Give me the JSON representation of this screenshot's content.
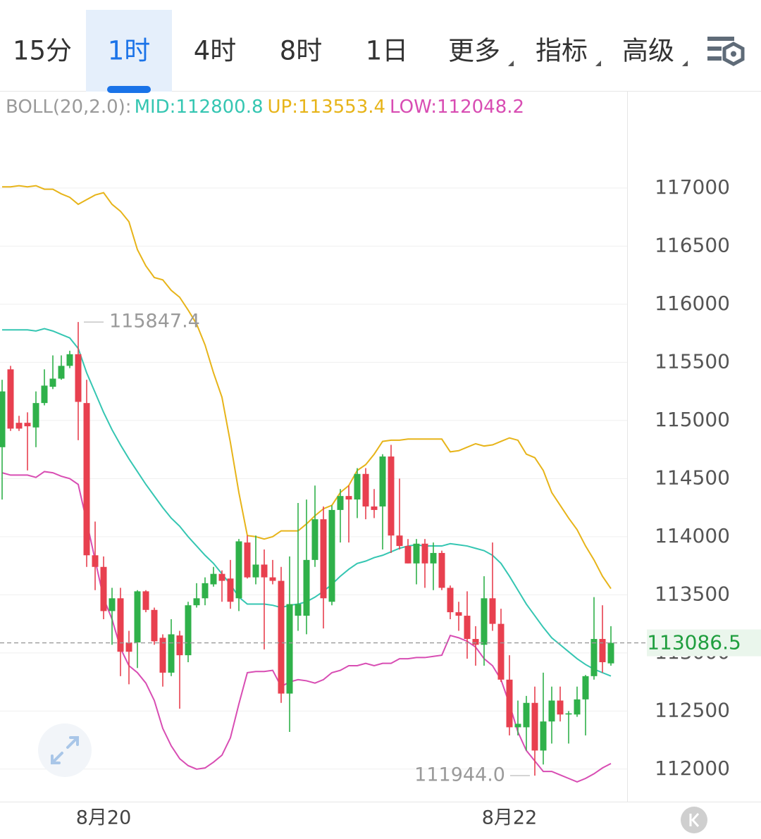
{
  "tabs": [
    {
      "label": "15分"
    },
    {
      "label": "1时",
      "selected": true
    },
    {
      "label": "4时"
    },
    {
      "label": "8时"
    },
    {
      "label": "1日"
    },
    {
      "label": "更多",
      "dropdown": true
    },
    {
      "label": "指标",
      "dropdown": true
    },
    {
      "label": "高级",
      "dropdown": true
    }
  ],
  "chart_data": {
    "type": "candlestick",
    "indicator": "BOLL(20,2.0):",
    "up_color": "#2fb14a",
    "down_color": "#e8404f",
    "categories": [
      null,
      null,
      null,
      null,
      null,
      null,
      null,
      null,
      null,
      null,
      null,
      null,
      "8月20",
      null,
      null,
      null,
      null,
      null,
      null,
      null,
      null,
      null,
      null,
      null,
      null,
      null,
      null,
      null,
      null,
      null,
      null,
      null,
      null,
      null,
      null,
      null,
      null,
      null,
      null,
      null,
      null,
      null,
      null,
      null,
      null,
      null,
      null,
      null,
      null,
      null,
      null,
      null,
      null,
      null,
      null,
      null,
      null,
      null,
      null,
      null,
      "8月22",
      null,
      null,
      null,
      null,
      null,
      null,
      null,
      null,
      null,
      null,
      null,
      null
    ],
    "open": [
      114770,
      115440,
      114980,
      114980,
      114940,
      115150,
      115290,
      115360,
      115470,
      115570,
      115150,
      113840,
      113740,
      113360,
      113470,
      113090,
      113090,
      113530,
      113370,
      113130,
      112830,
      113150,
      112980,
      113410,
      113470,
      113590,
      113680,
      113640,
      113470,
      113950,
      113650,
      113760,
      113650,
      113620,
      112650,
      113320,
      113320,
      113800,
      114150,
      113440,
      114230,
      114350,
      114320,
      114540,
      114260,
      114260,
      114690,
      114010,
      113920,
      113770,
      113940,
      113770,
      113860,
      113560,
      113350,
      113320,
      113120,
      113070,
      113470,
      113250,
      112770,
      112360,
      112360,
      112570,
      112160,
      112410,
      112590,
      112470,
      112470,
      112600,
      112800,
      113120,
      112910
    ],
    "high": [
      115350,
      115470,
      115040,
      115070,
      115250,
      115440,
      115560,
      115560,
      115600,
      115847.4,
      115350,
      114130,
      113830,
      113560,
      113560,
      113190,
      113540,
      113540,
      113390,
      113160,
      113290,
      113190,
      113440,
      113600,
      113650,
      113740,
      113710,
      113800,
      113980,
      114010,
      114010,
      113890,
      113800,
      113740,
      113830,
      114290,
      114320,
      114440,
      114260,
      114270,
      114410,
      114440,
      114590,
      114590,
      114410,
      114710,
      114790,
      114500,
      113980,
      113980,
      113980,
      113950,
      113880,
      113580,
      113440,
      113530,
      113230,
      113660,
      113950,
      113380,
      112980,
      112590,
      112630,
      112710,
      112830,
      112710,
      112710,
      112500,
      112710,
      112810,
      113480,
      113410,
      113230
    ],
    "low": [
      114320,
      114910,
      114910,
      114570,
      114770,
      115130,
      115270,
      115350,
      115450,
      114830,
      113740,
      113540,
      113290,
      113070,
      112800,
      112730,
      112870,
      113350,
      113070,
      112710,
      112800,
      112520,
      112920,
      113390,
      113410,
      113570,
      113440,
      113380,
      113360,
      113640,
      113590,
      113030,
      113590,
      112570,
      112320,
      113190,
      113160,
      113740,
      113210,
      113410,
      113950,
      113950,
      114160,
      114150,
      114160,
      113890,
      113860,
      113890,
      113770,
      113590,
      113560,
      113540,
      113540,
      113290,
      113190,
      112950,
      112890,
      112890,
      113190,
      112750,
      112290,
      112290,
      112160,
      111944,
      112040,
      112220,
      112410,
      112220,
      112450,
      112290,
      112770,
      112830,
      112890
    ],
    "close": [
      115250,
      114930,
      114930,
      114950,
      115150,
      115300,
      115360,
      115470,
      115570,
      115160,
      113840,
      113740,
      113360,
      113470,
      113010,
      113010,
      113530,
      113370,
      113100,
      112830,
      113160,
      112980,
      113410,
      113470,
      113600,
      113680,
      113620,
      113440,
      113960,
      113650,
      113760,
      113650,
      113620,
      112650,
      113420,
      113420,
      113800,
      114150,
      113470,
      114230,
      114350,
      114320,
      114540,
      114260,
      114230,
      114690,
      114010,
      113920,
      113770,
      113940,
      113770,
      113860,
      113560,
      113350,
      113320,
      113120,
      113070,
      113470,
      113250,
      112770,
      112360,
      112390,
      112570,
      112160,
      112410,
      112590,
      112470,
      112480,
      112600,
      112800,
      113120,
      112920,
      113086.5
    ],
    "series": [
      {
        "name": "MID:112800.8",
        "color": "#35c6b2",
        "values": [
          115780,
          115780,
          115780,
          115780,
          115770,
          115790,
          115770,
          115740,
          115710,
          115620,
          115410,
          115240,
          115070,
          114920,
          114790,
          114670,
          114560,
          114450,
          114350,
          114250,
          114160,
          114090,
          114000,
          113920,
          113840,
          113770,
          113680,
          113590,
          113480,
          113420,
          113420,
          113420,
          113410,
          113390,
          113410,
          113420,
          113440,
          113480,
          113530,
          113590,
          113660,
          113720,
          113770,
          113790,
          113820,
          113840,
          113870,
          113900,
          113920,
          113930,
          113920,
          113920,
          113920,
          113940,
          113930,
          113920,
          113900,
          113880,
          113840,
          113770,
          113660,
          113540,
          113420,
          113320,
          113220,
          113130,
          113070,
          113010,
          112950,
          112900,
          112860,
          112830,
          112800.8
        ]
      },
      {
        "name": "UP:113553.4",
        "color": "#e7b419",
        "values": [
          117010,
          117010,
          117020,
          117010,
          117020,
          116990,
          116990,
          116950,
          116920,
          116860,
          116900,
          116940,
          116960,
          116860,
          116800,
          116710,
          116470,
          116330,
          116230,
          116210,
          116120,
          116060,
          115950,
          115830,
          115650,
          115410,
          115200,
          114810,
          114380,
          114010,
          114000,
          113980,
          114000,
          114050,
          114050,
          114050,
          114110,
          114180,
          114240,
          114270,
          114380,
          114440,
          114570,
          114620,
          114710,
          114820,
          114830,
          114830,
          114840,
          114840,
          114840,
          114840,
          114840,
          114730,
          114740,
          114770,
          114800,
          114780,
          114790,
          114820,
          114850,
          114830,
          114710,
          114680,
          114570,
          114380,
          114270,
          114160,
          114060,
          113920,
          113800,
          113660,
          113553.4
        ]
      },
      {
        "name": "LOW:112048.2",
        "color": "#d84db3",
        "values": [
          114550,
          114530,
          114530,
          114530,
          114510,
          114560,
          114550,
          114520,
          114500,
          114450,
          114130,
          113800,
          113470,
          113290,
          113040,
          112890,
          112830,
          112740,
          112590,
          112350,
          112200,
          112090,
          112030,
          112000,
          112010,
          112060,
          112120,
          112270,
          112560,
          112830,
          112840,
          112840,
          112850,
          112710,
          112750,
          112770,
          112760,
          112740,
          112770,
          112830,
          112850,
          112890,
          112890,
          112910,
          112890,
          112910,
          112910,
          112950,
          112950,
          112960,
          112960,
          112970,
          112980,
          113150,
          113130,
          113100,
          113050,
          112950,
          112890,
          112770,
          112560,
          112320,
          112160,
          112070,
          111980,
          111980,
          111950,
          111920,
          111890,
          111920,
          111960,
          112010,
          112048.2
        ]
      }
    ],
    "low_label": "111944.0",
    "ylim": [
      111720,
      117830
    ],
    "yticks": [
      112000,
      112500,
      113000,
      113500,
      114000,
      114500,
      115000,
      115500,
      116000,
      116500,
      117000
    ],
    "grid": true
  }
}
